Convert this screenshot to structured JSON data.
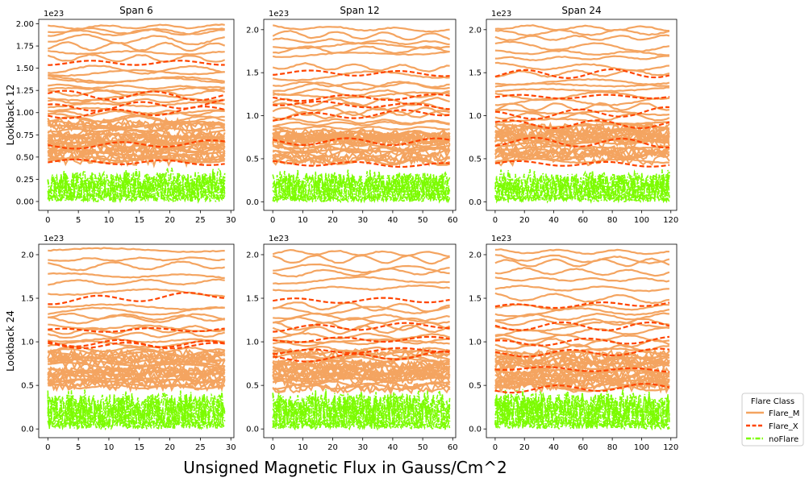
{
  "figure": {
    "xlabel": "Unsigned Magnetic Flux in Gauss/Cm^2",
    "legend": {
      "title": "Flare Class",
      "placement": "right",
      "entries": [
        {
          "name": "Flare_M",
          "color": "#f4a460",
          "style": "solid"
        },
        {
          "name": "Flare_X",
          "color": "#ff4500",
          "style": "dashed"
        },
        {
          "name": "noFlare",
          "color": "#7cfc00",
          "style": "dashdot"
        }
      ]
    }
  },
  "chart_data": [
    {
      "type": "line",
      "title": "Span 6",
      "ylabel": "Lookback 12",
      "offset_text": "1e23",
      "xlim": [
        -1.5,
        30.5
      ],
      "ylim": [
        -0.1,
        2.05
      ],
      "xticks": [
        0,
        5,
        10,
        15,
        20,
        25,
        30
      ],
      "xtick_labels": [
        "0",
        "5",
        "10",
        "15",
        "20",
        "25",
        "30"
      ],
      "yticks": [
        0,
        0.25,
        0.5,
        0.75,
        1.0,
        1.25,
        1.5,
        1.75,
        2.0
      ],
      "ytick_labels": [
        "0.00",
        "0.25",
        "0.50",
        "0.75",
        "1.00",
        "1.25",
        "1.50",
        "1.75",
        "2.00"
      ],
      "x_max": 29,
      "grid": false,
      "series": [
        {
          "class": "Flare_M",
          "levels": [
            1.93,
            1.96,
            1.89,
            1.84,
            1.75,
            1.68,
            1.62,
            1.49,
            1.44,
            1.38,
            1.36,
            1.3,
            1.25,
            1.22,
            1.17,
            1.12,
            1.08,
            1.03,
            0.99,
            0.95,
            0.92,
            0.88,
            0.84,
            0.8,
            0.77,
            0.74,
            0.7,
            0.67,
            0.64,
            0.61,
            0.58,
            0.55,
            0.52,
            0.49,
            0.46
          ]
        },
        {
          "class": "Flare_X",
          "levels": [
            1.56,
            1.2,
            1.05,
            0.97,
            0.62,
            0.45
          ]
        },
        {
          "class": "noFlare",
          "top": 0.33
        }
      ]
    },
    {
      "type": "line",
      "title": "Span 12",
      "ylabel": "",
      "offset_text": "1e23",
      "xlim": [
        -3,
        61
      ],
      "ylim": [
        -0.1,
        2.12
      ],
      "xticks": [
        0,
        10,
        20,
        30,
        40,
        50,
        60
      ],
      "xtick_labels": [
        "0",
        "10",
        "20",
        "30",
        "40",
        "50",
        "60"
      ],
      "yticks": [
        0,
        0.5,
        1.0,
        1.5,
        2.0
      ],
      "ytick_labels": [
        "0.0",
        "0.5",
        "1.0",
        "1.5",
        "2.0"
      ],
      "x_max": 59,
      "grid": false,
      "series": [
        {
          "class": "Flare_M",
          "levels": [
            2.03,
            1.95,
            1.88,
            1.81,
            1.77,
            1.7,
            1.58,
            1.45,
            1.37,
            1.33,
            1.28,
            1.22,
            1.15,
            1.1,
            1.05,
            1.0,
            0.95,
            0.9,
            0.86,
            0.82,
            0.78,
            0.74,
            0.7,
            0.66,
            0.62,
            0.58,
            0.55,
            0.51,
            0.48
          ]
        },
        {
          "class": "Flare_X",
          "levels": [
            1.5,
            1.2,
            1.15,
            0.98,
            0.7,
            0.45
          ]
        },
        {
          "class": "noFlare",
          "top": 0.33
        }
      ]
    },
    {
      "type": "line",
      "title": "Span 24",
      "ylabel": "",
      "offset_text": "1e23",
      "xlim": [
        -6,
        124
      ],
      "ylim": [
        -0.1,
        2.12
      ],
      "xticks": [
        0,
        20,
        40,
        60,
        80,
        100,
        120
      ],
      "xtick_labels": [
        "0",
        "20",
        "40",
        "60",
        "80",
        "100",
        "120"
      ],
      "yticks": [
        0,
        0.5,
        1.0,
        1.5,
        2.0
      ],
      "ytick_labels": [
        "0.0",
        "0.5",
        "1.0",
        "1.5",
        "2.0"
      ],
      "x_max": 119,
      "grid": false,
      "series": [
        {
          "class": "Flare_M",
          "levels": [
            2.03,
            1.96,
            1.9,
            1.82,
            1.74,
            1.66,
            1.58,
            1.48,
            1.4,
            1.34,
            1.28,
            1.22,
            1.16,
            1.1,
            1.05,
            1.0,
            0.95,
            0.9,
            0.86,
            0.82,
            0.78,
            0.74,
            0.7,
            0.66,
            0.62,
            0.58,
            0.55,
            0.51,
            0.48
          ]
        },
        {
          "class": "Flare_X",
          "levels": [
            1.48,
            1.22,
            1.0,
            0.9,
            0.7,
            0.45
          ]
        },
        {
          "class": "noFlare",
          "top": 0.33
        }
      ]
    },
    {
      "type": "line",
      "title": "",
      "ylabel": "Lookback 24",
      "offset_text": "1e23",
      "xlim": [
        -1.5,
        30.5
      ],
      "ylim": [
        -0.1,
        2.12
      ],
      "xticks": [
        0,
        5,
        10,
        15,
        20,
        25,
        30
      ],
      "xtick_labels": [
        "0",
        "5",
        "10",
        "15",
        "20",
        "25",
        "30"
      ],
      "yticks": [
        0,
        0.5,
        1.0,
        1.5,
        2.0
      ],
      "ytick_labels": [
        "0.0",
        "0.5",
        "1.0",
        "1.5",
        "2.0"
      ],
      "x_max": 29,
      "grid": false,
      "series": [
        {
          "class": "Flare_M",
          "levels": [
            2.06,
            1.94,
            1.86,
            1.77,
            1.68,
            1.58,
            1.42,
            1.35,
            1.3,
            1.25,
            1.18,
            1.12,
            1.07,
            1.02,
            0.97,
            0.92,
            0.88,
            0.84,
            0.8,
            0.76,
            0.72,
            0.68,
            0.64,
            0.6,
            0.56,
            0.52,
            0.49
          ]
        },
        {
          "class": "Flare_X",
          "levels": [
            1.47,
            1.13,
            0.99,
            0.96
          ]
        },
        {
          "class": "noFlare",
          "top": 0.4
        }
      ]
    },
    {
      "type": "line",
      "title": "",
      "ylabel": "",
      "offset_text": "1e23",
      "xlim": [
        -3,
        61
      ],
      "ylim": [
        -0.1,
        2.12
      ],
      "xticks": [
        0,
        10,
        20,
        30,
        40,
        50,
        60
      ],
      "xtick_labels": [
        "0",
        "10",
        "20",
        "30",
        "40",
        "50",
        "60"
      ],
      "yticks": [
        0,
        0.5,
        1.0,
        1.5,
        2.0
      ],
      "ytick_labels": [
        "0.0",
        "0.5",
        "1.0",
        "1.5",
        "2.0"
      ],
      "x_max": 59,
      "grid": false,
      "series": [
        {
          "class": "Flare_M",
          "levels": [
            2.03,
            1.95,
            1.86,
            1.78,
            1.7,
            1.6,
            1.42,
            1.35,
            1.3,
            1.25,
            1.18,
            1.12,
            1.07,
            1.02,
            0.97,
            0.92,
            0.88,
            0.84,
            0.8,
            0.76,
            0.72,
            0.68,
            0.64,
            0.6,
            0.56,
            0.52,
            0.49
          ]
        },
        {
          "class": "Flare_X",
          "levels": [
            1.47,
            1.15,
            1.02,
            0.88,
            0.8
          ]
        },
        {
          "class": "noFlare",
          "top": 0.4
        }
      ]
    },
    {
      "type": "line",
      "title": "",
      "ylabel": "",
      "offset_text": "1e23",
      "xlim": [
        -6,
        124
      ],
      "ylim": [
        -0.1,
        2.12
      ],
      "xticks": [
        0,
        20,
        40,
        60,
        80,
        100,
        120
      ],
      "xtick_labels": [
        "0",
        "20",
        "40",
        "60",
        "80",
        "100",
        "120"
      ],
      "yticks": [
        0,
        0.5,
        1.0,
        1.5,
        2.0
      ],
      "ytick_labels": [
        "0.0",
        "0.5",
        "1.0",
        "1.5",
        "2.0"
      ],
      "x_max": 119,
      "grid": false,
      "series": [
        {
          "class": "Flare_M",
          "levels": [
            2.04,
            1.97,
            1.9,
            1.82,
            1.72,
            1.62,
            1.52,
            1.4,
            1.33,
            1.28,
            1.22,
            1.16,
            1.1,
            1.05,
            1.0,
            0.95,
            0.9,
            0.86,
            0.82,
            0.78,
            0.74,
            0.7,
            0.66,
            0.62,
            0.58,
            0.55,
            0.51,
            0.48
          ]
        },
        {
          "class": "Flare_X",
          "levels": [
            1.4,
            1.18,
            0.98,
            0.86,
            0.7,
            0.45
          ]
        },
        {
          "class": "noFlare",
          "top": 0.4
        }
      ]
    }
  ]
}
